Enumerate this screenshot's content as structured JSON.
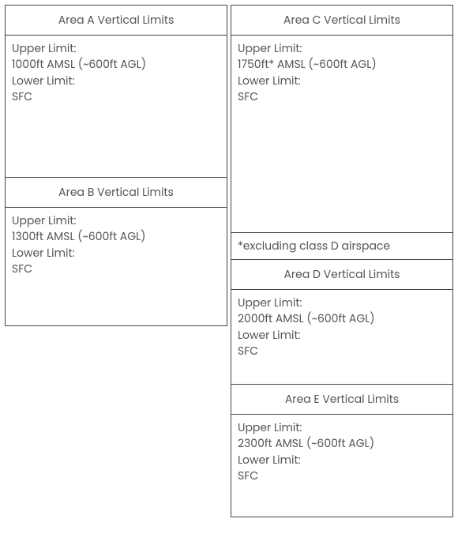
{
  "left": {
    "areaA": {
      "title": "Area A Vertical Limits",
      "upperLabel": "Upper Limit:",
      "upperValue": "1000ft AMSL (~600ft AGL)",
      "lowerLabel": "Lower Limit:",
      "lowerValue": "SFC"
    },
    "areaB": {
      "title": "Area B Vertical Limits",
      "upperLabel": "Upper Limit:",
      "upperValue": "1300ft AMSL (~600ft AGL)",
      "lowerLabel": "Lower Limit:",
      "lowerValue": "SFC"
    }
  },
  "right": {
    "areaC": {
      "title": "Area C Vertical Limits",
      "upperLabel": "Upper Limit:",
      "upperValue": "1750ft* AMSL (~600ft AGL)",
      "lowerLabel": "Lower Limit:",
      "lowerValue": "SFC",
      "footnote": "*excluding class D airspace"
    },
    "areaD": {
      "title": "Area D Vertical Limits",
      "upperLabel": "Upper Limit:",
      "upperValue": "2000ft AMSL (~600ft AGL)",
      "lowerLabel": "Lower Limit:",
      "lowerValue": "SFC"
    },
    "areaE": {
      "title": "Area E Vertical Limits",
      "upperLabel": "Upper Limit:",
      "upperValue": "2300ft AMSL (~600ft AGL)",
      "lowerLabel": "Lower Limit:",
      "lowerValue": "SFC"
    }
  },
  "colors": {
    "text": "#555",
    "border": "#444",
    "background": "#ffffff"
  }
}
